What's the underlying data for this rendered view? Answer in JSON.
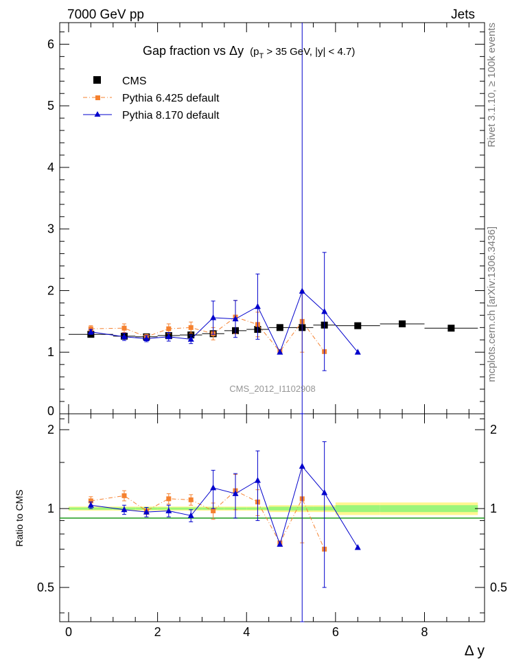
{
  "header": {
    "left": "7000 GeV pp",
    "right": "Jets"
  },
  "side": {
    "rivet": "Rivet 3.1.10, ≥ 100k events",
    "mcplots": "mcplots.cern.ch [arXiv:1306.3436]"
  },
  "chart_data": {
    "type": "line",
    "title": "Gap fraction vs  Δy",
    "title_sub": "(p",
    "title_sub_T": "T",
    "title_sub_rest": " > 35 GeV, |y| < 4.7)",
    "watermark": "CMS_2012_I1102908",
    "xlabel": "Δ y",
    "ylabel_ratio": "Ratio to CMS",
    "xlim": [
      -0.2,
      9.35
    ],
    "ylim": [
      0,
      6.35
    ],
    "ratio_ylim": [
      0.37,
      2.3
    ],
    "ratio_scale": "log",
    "x_ticks": [
      "0",
      "2",
      "4",
      "6",
      "8"
    ],
    "y_ticks": [
      "1",
      "2",
      "3",
      "4",
      "5",
      "6"
    ],
    "y_ticks_bottom_partial": "0",
    "ratio_ticks": [
      "0.5",
      "1",
      "2"
    ],
    "legend_position": "top-left",
    "series": [
      {
        "name": "CMS",
        "style": "data",
        "color": "#000000",
        "marker": "square",
        "x": [
          0.5,
          1.25,
          1.75,
          2.25,
          2.75,
          3.25,
          3.75,
          4.25,
          4.75,
          5.25,
          5.75,
          6.5,
          7.5,
          8.6
        ],
        "y": [
          1.29,
          1.26,
          1.25,
          1.27,
          1.28,
          1.3,
          1.35,
          1.37,
          1.4,
          1.4,
          1.44,
          1.43,
          1.46,
          1.39
        ],
        "xerr": [
          0.5,
          0.25,
          0.25,
          0.25,
          0.25,
          0.25,
          0.25,
          0.25,
          0.25,
          0.25,
          0.25,
          0.5,
          0.5,
          0.6
        ]
      },
      {
        "name": "Pythia 6.425 default",
        "style": "dashdot",
        "color": "#f5812f",
        "marker": "square",
        "x": [
          0.5,
          1.25,
          1.75,
          2.25,
          2.75,
          3.25,
          3.75,
          4.25,
          4.75,
          5.25,
          5.75
        ],
        "y": [
          1.38,
          1.39,
          1.25,
          1.38,
          1.4,
          1.3,
          1.57,
          1.45,
          1.01,
          1.5,
          1.01
        ],
        "yerr": [
          0.05,
          0.07,
          0.04,
          0.08,
          0.09,
          0.1,
          0.27,
          0.2,
          0.0,
          0.5,
          0.0
        ],
        "ratio": [
          1.07,
          1.12,
          0.98,
          1.09,
          1.08,
          0.98,
          1.17,
          1.06,
          0.74,
          1.09,
          0.7
        ],
        "ratio_err": [
          0.04,
          0.05,
          0.03,
          0.05,
          0.05,
          0.07,
          0.18,
          0.12,
          0.0,
          0.35,
          0.0
        ]
      },
      {
        "name": "Pythia 8.170 default",
        "style": "solid",
        "color": "#0000cc",
        "marker": "triangle",
        "x": [
          0.5,
          1.25,
          1.75,
          2.25,
          2.75,
          3.25,
          3.75,
          4.25,
          4.75,
          5.25,
          5.75,
          6.5
        ],
        "y": [
          1.33,
          1.25,
          1.22,
          1.25,
          1.21,
          1.56,
          1.54,
          1.74,
          1.0,
          1.99,
          1.66,
          1.0
        ],
        "yerr": [
          0.04,
          0.06,
          0.05,
          0.07,
          0.07,
          0.27,
          0.3,
          0.53,
          0.0,
          4.4,
          0.96,
          0.0
        ],
        "ratio": [
          1.03,
          0.99,
          0.97,
          0.98,
          0.94,
          1.2,
          1.14,
          1.28,
          0.73,
          1.45,
          1.15,
          0.71
        ],
        "ratio_err": [
          0.03,
          0.04,
          0.04,
          0.05,
          0.05,
          0.2,
          0.22,
          0.38,
          0.0,
          3.0,
          0.65,
          0.0
        ]
      }
    ]
  }
}
